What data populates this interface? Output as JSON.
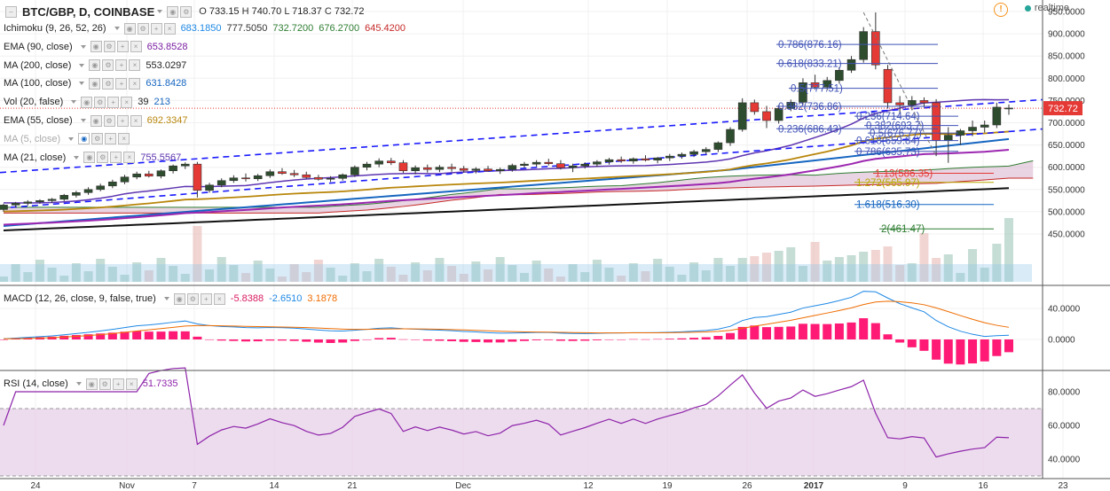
{
  "header": {
    "symbol": "BTC/GBP, D, COINBASE",
    "o_label": "O",
    "o": "733.15",
    "h_label": "H",
    "h": "740.70",
    "l_label": "L",
    "l": "718.37",
    "c_label": "C",
    "c": "732.72",
    "realtime": "realtime"
  },
  "indicators": [
    {
      "name": "Ichimoku (9, 26, 52, 26)",
      "values": [
        "683.1850",
        "777.5050",
        "732.7200",
        "676.2700",
        "645.4200"
      ],
      "colors": [
        "#1e88e5",
        "#333333",
        "#2e7d32",
        "#2e7d32",
        "#c62828"
      ]
    },
    {
      "name": "EMA (90, close)",
      "values": [
        "653.8528"
      ],
      "colors": [
        "#7b1fa2"
      ]
    },
    {
      "name": "MA (200, close)",
      "values": [
        "553.0297"
      ],
      "colors": [
        "#222222"
      ]
    },
    {
      "name": "MA (100, close)",
      "values": [
        "631.8428"
      ],
      "colors": [
        "#1565c0"
      ]
    },
    {
      "name": "Vol (20, false)",
      "values": [
        "39",
        "213"
      ],
      "colors": [
        "#222222",
        "#1565c0"
      ]
    },
    {
      "name": "EMA (55, close)",
      "values": [
        "692.3347"
      ],
      "colors": [
        "#b8860b"
      ]
    },
    {
      "name": "MA (5, close)",
      "values": [],
      "colors": []
    },
    {
      "name": "MA (21, close)",
      "values": [
        "755.5567"
      ],
      "colors": [
        "#5e35b1"
      ]
    }
  ],
  "macd": {
    "name": "MACD (12, 26, close, 9, false, true)",
    "values": [
      "-5.8388",
      "-2.6510",
      "3.1878"
    ],
    "colors": [
      "#d81b60",
      "#1e88e5",
      "#ef6c00"
    ]
  },
  "rsi": {
    "name": "RSI (14, close)",
    "value": "51.7335",
    "color": "#8e24aa"
  },
  "price_tag": "732.72",
  "colors": {
    "up": "#2e4d2e",
    "down": "#e53935",
    "ema55": "#b8860b",
    "ma21": "#5e35b1",
    "ema90": "#9c27b0",
    "ma100": "#1565c0",
    "ma200": "#111111",
    "trend": "#1a1aff",
    "cloud_top": "#2e7d32",
    "cloud_bot": "#c62828"
  },
  "chart_data": [
    {
      "type": "candlestick",
      "y_axis_labels": [
        "950.0000",
        "900.0000",
        "850.0000",
        "800.0000",
        "750.0000",
        "700.0000",
        "650.0000",
        "600.0000",
        "550.0000",
        "500.0000",
        "450.0000"
      ],
      "y_axis_values": [
        950,
        900,
        850,
        800,
        750,
        700,
        650,
        600,
        550,
        500,
        450
      ],
      "x_axis_labels": [
        "24",
        "Nov",
        "7",
        "14",
        "21",
        "Dec",
        "12",
        "19",
        "26",
        "2017",
        "9",
        "16",
        "23"
      ],
      "ylim": [
        420,
        960
      ],
      "ohlc": [
        [
          505,
          518,
          500,
          515
        ],
        [
          515,
          522,
          509,
          519
        ],
        [
          519,
          526,
          514,
          522
        ],
        [
          522,
          528,
          518,
          525
        ],
        [
          525,
          531,
          520,
          528
        ],
        [
          528,
          540,
          524,
          537
        ],
        [
          537,
          547,
          532,
          543
        ],
        [
          543,
          555,
          538,
          550
        ],
        [
          550,
          563,
          546,
          558
        ],
        [
          558,
          572,
          553,
          567
        ],
        [
          567,
          583,
          562,
          578
        ],
        [
          578,
          590,
          573,
          585
        ],
        [
          585,
          592,
          577,
          580
        ],
        [
          580,
          595,
          575,
          592
        ],
        [
          592,
          606,
          586,
          603
        ],
        [
          603,
          611,
          596,
          607
        ],
        [
          607,
          612,
          532,
          548
        ],
        [
          548,
          565,
          543,
          560
        ],
        [
          560,
          575,
          555,
          570
        ],
        [
          570,
          582,
          565,
          576
        ],
        [
          576,
          586,
          568,
          574
        ],
        [
          574,
          585,
          569,
          581
        ],
        [
          581,
          595,
          576,
          590
        ],
        [
          590,
          598,
          583,
          586
        ],
        [
          586,
          594,
          578,
          583
        ],
        [
          583,
          590,
          574,
          577
        ],
        [
          577,
          583,
          570,
          573
        ],
        [
          573,
          580,
          567,
          575
        ],
        [
          575,
          586,
          570,
          583
        ],
        [
          583,
          604,
          578,
          600
        ],
        [
          600,
          612,
          593,
          607
        ],
        [
          607,
          620,
          600,
          614
        ],
        [
          614,
          621,
          605,
          610
        ],
        [
          610,
          616,
          587,
          592
        ],
        [
          592,
          604,
          584,
          599
        ],
        [
          599,
          606,
          588,
          595
        ],
        [
          595,
          605,
          589,
          600
        ],
        [
          600,
          608,
          590,
          597
        ],
        [
          597,
          603,
          588,
          593
        ],
        [
          593,
          600,
          586,
          596
        ],
        [
          596,
          603,
          590,
          592
        ],
        [
          592,
          599,
          585,
          595
        ],
        [
          595,
          608,
          590,
          604
        ],
        [
          604,
          612,
          598,
          607
        ],
        [
          607,
          616,
          601,
          611
        ],
        [
          611,
          619,
          604,
          608
        ],
        [
          608,
          616,
          595,
          599
        ],
        [
          599,
          608,
          589,
          603
        ],
        [
          603,
          611,
          597,
          607
        ],
        [
          607,
          616,
          601,
          612
        ],
        [
          612,
          621,
          606,
          617
        ],
        [
          617,
          624,
          610,
          614
        ],
        [
          614,
          622,
          608,
          619
        ],
        [
          619,
          627,
          613,
          616
        ],
        [
          616,
          623,
          609,
          621
        ],
        [
          621,
          630,
          614,
          625
        ],
        [
          625,
          633,
          619,
          629
        ],
        [
          629,
          639,
          623,
          635
        ],
        [
          635,
          645,
          629,
          640
        ],
        [
          640,
          658,
          634,
          655
        ],
        [
          655,
          690,
          648,
          685
        ],
        [
          685,
          755,
          680,
          745
        ],
        [
          745,
          752,
          718,
          725
        ],
        [
          725,
          738,
          688,
          705
        ],
        [
          705,
          740,
          698,
          732
        ],
        [
          732,
          752,
          726,
          746
        ],
        [
          746,
          800,
          740,
          790
        ],
        [
          790,
          808,
          775,
          780
        ],
        [
          780,
          803,
          773,
          795
        ],
        [
          795,
          825,
          788,
          818
        ],
        [
          818,
          850,
          812,
          842
        ],
        [
          842,
          915,
          835,
          905
        ],
        [
          905,
          948,
          820,
          830
        ],
        [
          820,
          830,
          732,
          745
        ],
        [
          745,
          760,
          720,
          740
        ],
        [
          740,
          760,
          728,
          750
        ],
        [
          750,
          757,
          735,
          745
        ],
        [
          745,
          753,
          625,
          660
        ],
        [
          660,
          690,
          610,
          672
        ],
        [
          672,
          686,
          650,
          682
        ],
        [
          682,
          705,
          670,
          690
        ],
        [
          690,
          705,
          678,
          695
        ],
        [
          695,
          745,
          688,
          735
        ],
        [
          733,
          741,
          718,
          733
        ]
      ],
      "fibonacci": [
        {
          "label": "0.786(876.16)",
          "price": 876.16
        },
        {
          "label": "0.618(833.21)",
          "price": 833.21
        },
        {
          "label": "0.5(777.51)",
          "price": 777.51
        },
        {
          "label": "0.382(736.86)",
          "price": 736.86
        },
        {
          "label": "0.236(714.64)",
          "price": 714.64
        },
        {
          "label": "0.382(693.7)",
          "price": 693.7
        },
        {
          "label": "0.5(676.77)",
          "price": 676.77
        },
        {
          "label": "0.236(686.43)",
          "price": 686.43
        },
        {
          "label": "0.618(659.84)",
          "price": 659.84
        },
        {
          "label": "0.786(635.73)",
          "price": 635.73
        },
        {
          "label": "1.13(586.35)",
          "price": 586.35
        },
        {
          "label": "1.272(565.97)",
          "price": 565.97
        },
        {
          "label": "1.618(516.30)",
          "price": 516.3
        },
        {
          "label": "2(461.47)",
          "price": 461.47
        }
      ]
    },
    {
      "type": "line",
      "name": "MACD",
      "y_axis_labels": [
        "40.0000",
        "0.0000"
      ],
      "y_axis_values": [
        40,
        0
      ],
      "ylim": [
        -35,
        65
      ]
    },
    {
      "type": "line",
      "name": "RSI",
      "y_axis_labels": [
        "80.0000",
        "60.0000",
        "40.0000"
      ],
      "y_axis_values": [
        80,
        60,
        40
      ],
      "ylim": [
        22,
        102
      ],
      "bands": [
        70,
        30
      ]
    }
  ]
}
